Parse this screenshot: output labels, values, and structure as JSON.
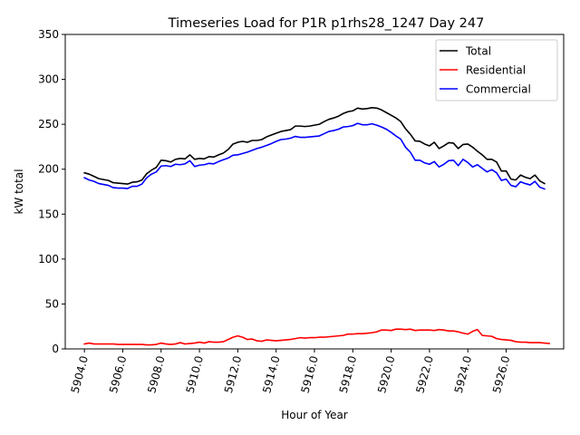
{
  "chart_data": {
    "type": "line",
    "title": "Timeseries Load for P1R p1rhs28_1247  Day 247",
    "xlabel": "Hour of Year",
    "ylabel": "kW total",
    "xlim": [
      5903,
      5929
    ],
    "ylim": [
      0,
      350
    ],
    "x_ticks": [
      5904,
      5906,
      5908,
      5910,
      5912,
      5914,
      5916,
      5918,
      5920,
      5922,
      5924,
      5926
    ],
    "x_tick_labels": [
      "5904.0",
      "5906.0",
      "5908.0",
      "5910.0",
      "5912.0",
      "5914.0",
      "5916.0",
      "5918.0",
      "5920.0",
      "5922.0",
      "5924.0",
      "5926.0"
    ],
    "y_ticks": [
      0,
      50,
      100,
      150,
      200,
      250,
      300,
      350
    ],
    "y_tick_labels": [
      "0",
      "50",
      "100",
      "150",
      "200",
      "250",
      "300",
      "350"
    ],
    "grid": false,
    "legend_position": "top-right",
    "x_start": 5904,
    "x_step": 0.25,
    "series": [
      {
        "name": "Total",
        "color": "#000000",
        "values": [
          196,
          194.5,
          192,
          189.5,
          188.5,
          187.5,
          185,
          184.5,
          184,
          183.5,
          185.5,
          186,
          188,
          195,
          199,
          202,
          210,
          209.5,
          208,
          211,
          212,
          211.5,
          216,
          211,
          212,
          211.5,
          214,
          213.5,
          216,
          218,
          222,
          228,
          230,
          231,
          230,
          232,
          232,
          233,
          236,
          238,
          240,
          242,
          243,
          244,
          248,
          248,
          247.5,
          248,
          249,
          250,
          253,
          255.5,
          257,
          259,
          262,
          264,
          265,
          268,
          267,
          267.5,
          268.5,
          268,
          266,
          263,
          260,
          257,
          253,
          245,
          239,
          231.5,
          231,
          228,
          226,
          230,
          223,
          226,
          229.5,
          229,
          223,
          227.5,
          228,
          224.5,
          220,
          216,
          211,
          211,
          208,
          198,
          198,
          189,
          188,
          193.5,
          191,
          189.5,
          193.5,
          187,
          184
        ]
      },
      {
        "name": "Residential",
        "color": "#ff0000",
        "values": [
          5.5,
          6.5,
          5.5,
          5.5,
          5.5,
          5.5,
          5.5,
          5,
          5,
          5,
          5,
          5,
          5,
          4.5,
          4.5,
          5,
          6.5,
          5.5,
          5,
          5.5,
          7,
          5.5,
          6,
          6.5,
          7.5,
          6.5,
          8,
          7.5,
          7.5,
          8,
          10.5,
          13,
          14.5,
          13,
          10.5,
          11,
          9,
          8.5,
          10,
          9.5,
          9,
          9.5,
          10,
          10.5,
          11.5,
          12.5,
          12,
          12.5,
          12.5,
          13,
          13,
          13.5,
          14,
          14.5,
          15,
          16.5,
          16.5,
          17,
          17,
          17.5,
          18,
          19,
          21,
          21,
          20.5,
          22,
          22,
          21.5,
          22,
          20.5,
          21,
          21,
          21,
          20.5,
          21.5,
          21,
          20,
          20,
          19,
          17.5,
          16.5,
          19.5,
          21.5,
          15,
          14.5,
          14,
          11.5,
          10.5,
          10,
          9.5,
          8,
          7.5,
          7.5,
          7,
          7,
          7,
          6.5,
          6
        ]
      },
      {
        "name": "Commercial",
        "color": "#0000ff",
        "values": [
          190.5,
          188,
          186.5,
          184,
          183,
          182,
          179.5,
          179,
          179,
          178.5,
          181,
          181,
          183.5,
          190.5,
          194.5,
          197,
          203.5,
          204,
          203,
          205.5,
          205,
          206,
          209.5,
          203,
          204.5,
          205,
          206.5,
          206,
          208.5,
          210.5,
          212.5,
          215.5,
          216,
          217.5,
          219,
          221,
          223,
          224.5,
          226.5,
          228.5,
          231,
          233,
          233.5,
          234.5,
          236.5,
          235.5,
          235.5,
          236,
          236.5,
          237,
          239.5,
          242,
          243,
          244.5,
          247,
          247.5,
          248.5,
          251,
          249.5,
          249.5,
          250.5,
          249,
          247,
          244.5,
          241,
          237,
          233.5,
          224.5,
          219,
          210,
          210,
          207,
          205.5,
          208.5,
          202.5,
          205.5,
          209.5,
          210,
          204,
          211,
          207.5,
          202.5,
          205,
          201,
          197,
          199.5,
          196,
          187.5,
          189,
          182,
          180.5,
          186,
          184,
          182.5,
          186.5,
          180,
          178
        ]
      }
    ]
  }
}
